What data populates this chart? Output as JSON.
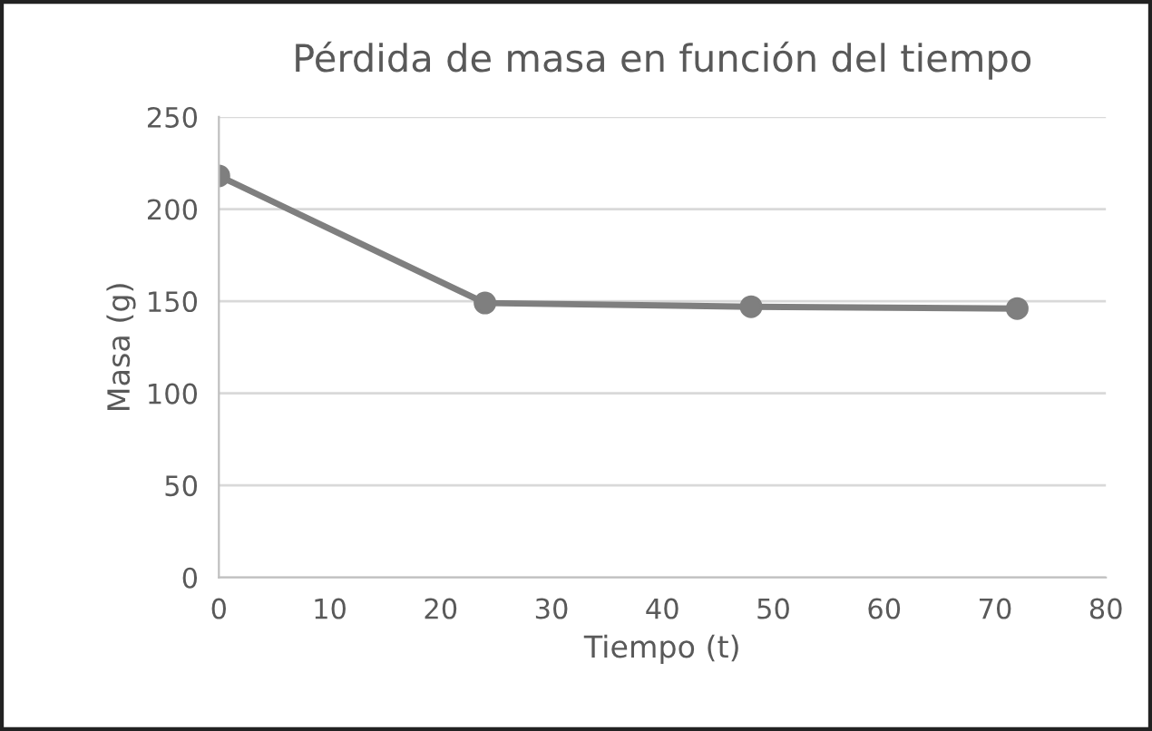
{
  "chart_data": {
    "type": "line",
    "title": "Pérdida de masa en función del tiempo",
    "xlabel": "Tiempo (t)",
    "ylabel": "Masa (g)",
    "series": [
      {
        "color": "#7f7f7f",
        "x": [
          0,
          24,
          48,
          72
        ],
        "values": [
          218,
          149,
          147,
          146
        ]
      }
    ],
    "xlim": [
      0,
      80
    ],
    "xticks": [
      0,
      10,
      20,
      30,
      40,
      50,
      60,
      70,
      80
    ],
    "ylim": [
      0,
      250
    ],
    "yticks": [
      0,
      50,
      100,
      150,
      200,
      250
    ],
    "grid": "y",
    "marker": "circle",
    "line_style": "solid",
    "legend": false
  }
}
